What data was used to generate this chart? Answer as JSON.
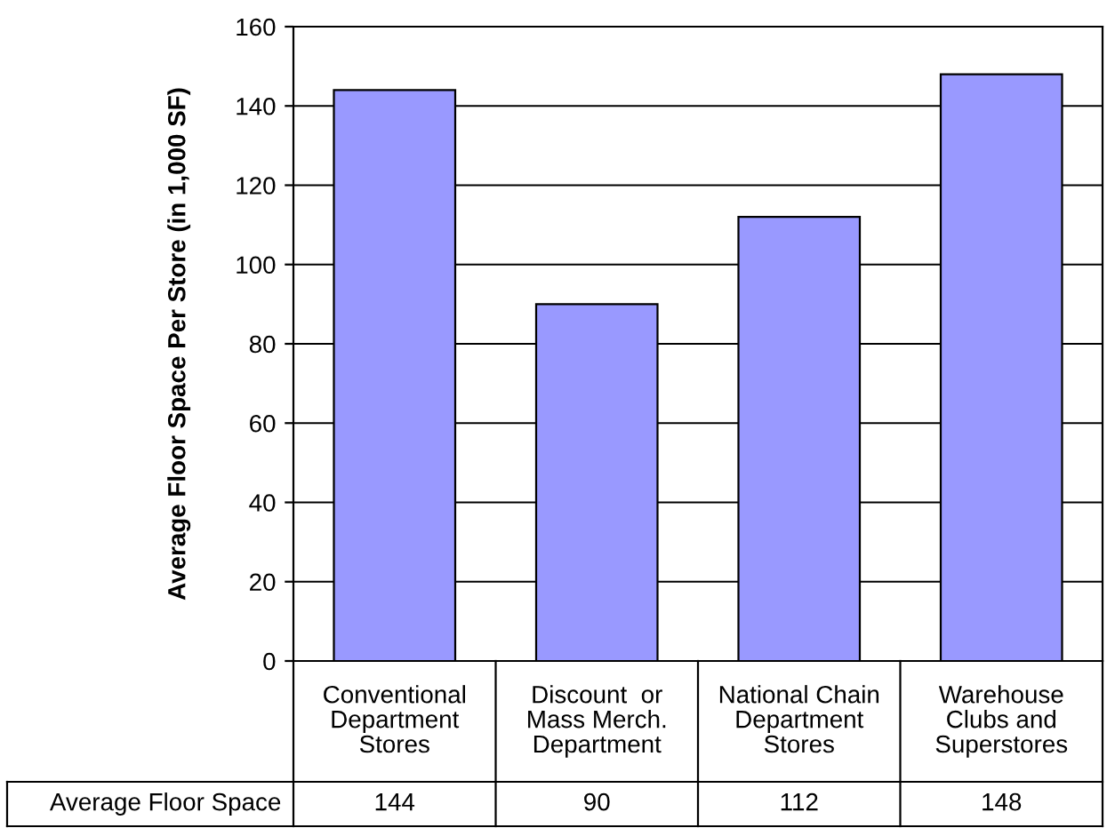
{
  "chart_data": {
    "type": "bar",
    "ylabel": "Average Floor Space Per Store (in 1,000 SF)",
    "categories": [
      "Conventional\nDepartment\nStores",
      "Discount  or\nMass Merch.\nDepartment",
      "National Chain\nDepartment\nStores",
      "Warehouse\nClubs and\nSuperstores"
    ],
    "series": [
      {
        "name": "Average Floor Space",
        "color": "#9999ff",
        "values": [
          144,
          90,
          112,
          148
        ]
      }
    ],
    "ylim": [
      0,
      160
    ],
    "yticks": [
      0,
      20,
      40,
      60,
      80,
      100,
      120,
      140,
      160
    ],
    "grid": "y",
    "data_labels": true,
    "legend": "bottom"
  }
}
